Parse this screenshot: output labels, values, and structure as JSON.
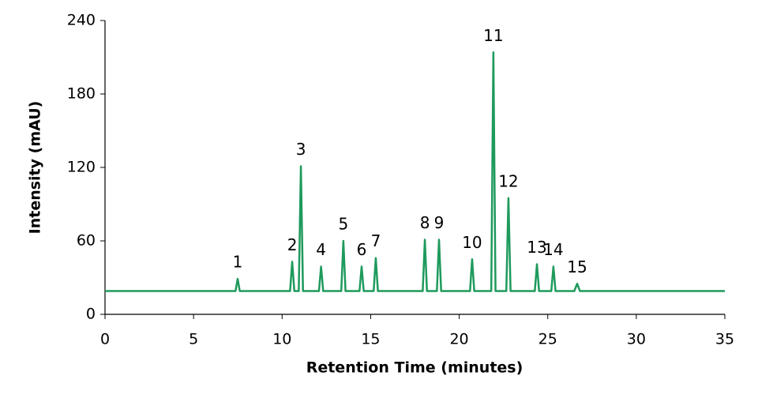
{
  "chart_data": {
    "type": "line",
    "x_label": "Retention Time (minutes)",
    "y_label": "Intensity (mAU)",
    "xlim": [
      0,
      35
    ],
    "xticks": [
      0,
      5,
      10,
      15,
      20,
      25,
      30,
      35
    ],
    "ylim": [
      0,
      240
    ],
    "yticks": [
      0,
      60,
      120,
      180,
      240
    ],
    "peak_labels": [
      "1",
      "2",
      "3",
      "4",
      "5",
      "6",
      "7",
      "8",
      "9",
      "10",
      "11",
      "12",
      "13",
      "14",
      "15"
    ],
    "series": [
      {
        "color": "#1e9a5c",
        "x": [
          0,
          7.37,
          7.49,
          7.61,
          10.45,
          10.57,
          10.69,
          10.94,
          11.06,
          11.18,
          12.08,
          12.2,
          12.32,
          13.34,
          13.46,
          13.58,
          14.37,
          14.49,
          14.61,
          15.17,
          15.29,
          15.41,
          17.94,
          18.06,
          18.18,
          18.74,
          18.86,
          18.98,
          20.61,
          20.73,
          20.85,
          21.81,
          21.93,
          22.05,
          22.66,
          22.78,
          22.9,
          24.27,
          24.39,
          24.51,
          25.2,
          25.32,
          25.44,
          26.5,
          26.66,
          26.82,
          35
        ],
        "values": [
          19,
          19,
          29,
          19,
          19,
          43,
          19,
          19,
          121,
          19,
          19,
          39,
          19,
          19,
          60,
          19,
          19,
          39,
          19,
          19,
          46,
          19,
          19,
          61,
          19,
          19,
          61,
          19,
          19,
          45,
          19,
          19,
          214,
          19,
          19,
          95,
          19,
          19,
          41,
          19,
          19,
          39,
          19,
          19,
          25,
          19,
          19
        ]
      }
    ]
  }
}
